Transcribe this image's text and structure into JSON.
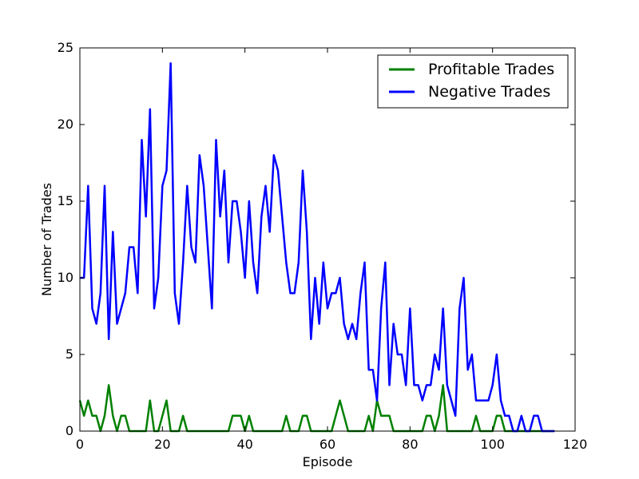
{
  "chart_data": {
    "type": "line",
    "xlabel": "Episode",
    "ylabel": "Number of Trades",
    "xlim": [
      0,
      120
    ],
    "ylim": [
      0,
      25
    ],
    "xticks": [
      0,
      20,
      40,
      60,
      80,
      100,
      120
    ],
    "yticks": [
      0,
      5,
      10,
      15,
      20,
      25
    ],
    "grid": false,
    "legend_position": "top-right",
    "series": [
      {
        "name": "Profitable Trades",
        "color": "#008000",
        "x": [
          0,
          1,
          2,
          3,
          4,
          5,
          6,
          7,
          8,
          9,
          10,
          11,
          12,
          13,
          14,
          15,
          16,
          17,
          18,
          19,
          20,
          21,
          22,
          23,
          24,
          25,
          26,
          27,
          28,
          29,
          30,
          31,
          32,
          33,
          34,
          35,
          36,
          37,
          38,
          39,
          40,
          41,
          42,
          43,
          44,
          45,
          46,
          47,
          48,
          49,
          50,
          51,
          52,
          53,
          54,
          55,
          56,
          57,
          58,
          59,
          60,
          61,
          62,
          63,
          64,
          65,
          66,
          67,
          68,
          69,
          70,
          71,
          72,
          73,
          74,
          75,
          76,
          77,
          78,
          79,
          80,
          81,
          82,
          83,
          84,
          85,
          86,
          87,
          88,
          89,
          90,
          91,
          92,
          93,
          94,
          95,
          96,
          97,
          98,
          99,
          100,
          101,
          102,
          103,
          104,
          105,
          106,
          107,
          108,
          109,
          110,
          111,
          112,
          113,
          114,
          115
        ],
        "values": [
          2,
          1,
          2,
          1,
          1,
          0,
          1,
          3,
          1,
          0,
          1,
          1,
          0,
          0,
          0,
          0,
          0,
          2,
          0,
          0,
          1,
          2,
          0,
          0,
          0,
          1,
          0,
          0,
          0,
          0,
          0,
          0,
          0,
          0,
          0,
          0,
          0,
          1,
          1,
          1,
          0,
          1,
          0,
          0,
          0,
          0,
          0,
          0,
          0,
          0,
          1,
          0,
          0,
          0,
          1,
          1,
          0,
          0,
          0,
          0,
          0,
          0,
          1,
          2,
          1,
          0,
          0,
          0,
          0,
          0,
          1,
          0,
          2,
          1,
          1,
          1,
          0,
          0,
          0,
          0,
          0,
          0,
          0,
          0,
          1,
          1,
          0,
          1,
          3,
          0,
          0,
          0,
          0,
          0,
          0,
          0,
          1,
          0,
          0,
          0,
          0,
          1,
          1,
          0,
          0,
          0,
          0,
          0,
          0,
          0,
          0,
          0,
          0,
          0,
          0,
          0
        ]
      },
      {
        "name": "Negative Trades",
        "color": "#0000ff",
        "x": [
          0,
          1,
          2,
          3,
          4,
          5,
          6,
          7,
          8,
          9,
          10,
          11,
          12,
          13,
          14,
          15,
          16,
          17,
          18,
          19,
          20,
          21,
          22,
          23,
          24,
          25,
          26,
          27,
          28,
          29,
          30,
          31,
          32,
          33,
          34,
          35,
          36,
          37,
          38,
          39,
          40,
          41,
          42,
          43,
          44,
          45,
          46,
          47,
          48,
          49,
          50,
          51,
          52,
          53,
          54,
          55,
          56,
          57,
          58,
          59,
          60,
          61,
          62,
          63,
          64,
          65,
          66,
          67,
          68,
          69,
          70,
          71,
          72,
          73,
          74,
          75,
          76,
          77,
          78,
          79,
          80,
          81,
          82,
          83,
          84,
          85,
          86,
          87,
          88,
          89,
          90,
          91,
          92,
          93,
          94,
          95,
          96,
          97,
          98,
          99,
          100,
          101,
          102,
          103,
          104,
          105,
          106,
          107,
          108,
          109,
          110,
          111,
          112,
          113,
          114,
          115
        ],
        "values": [
          10,
          10,
          16,
          8,
          7,
          9,
          16,
          6,
          13,
          7,
          8,
          9,
          12,
          12,
          9,
          19,
          14,
          21,
          8,
          10,
          16,
          17,
          24,
          9,
          7,
          11,
          16,
          12,
          11,
          18,
          16,
          12,
          8,
          19,
          14,
          17,
          11,
          15,
          15,
          13,
          10,
          15,
          11,
          9,
          14,
          16,
          13,
          18,
          17,
          14,
          11,
          9,
          9,
          11,
          17,
          13,
          6,
          10,
          7,
          11,
          8,
          9,
          9,
          10,
          7,
          6,
          7,
          6,
          9,
          11,
          4,
          4,
          2,
          8,
          11,
          3,
          7,
          5,
          5,
          3,
          8,
          3,
          3,
          2,
          3,
          3,
          5,
          4,
          8,
          3,
          2,
          1,
          8,
          10,
          4,
          5,
          2,
          2,
          2,
          2,
          3,
          5,
          2,
          1,
          1,
          0,
          0,
          1,
          0,
          0,
          1,
          1,
          0,
          0,
          0,
          0
        ]
      }
    ]
  }
}
